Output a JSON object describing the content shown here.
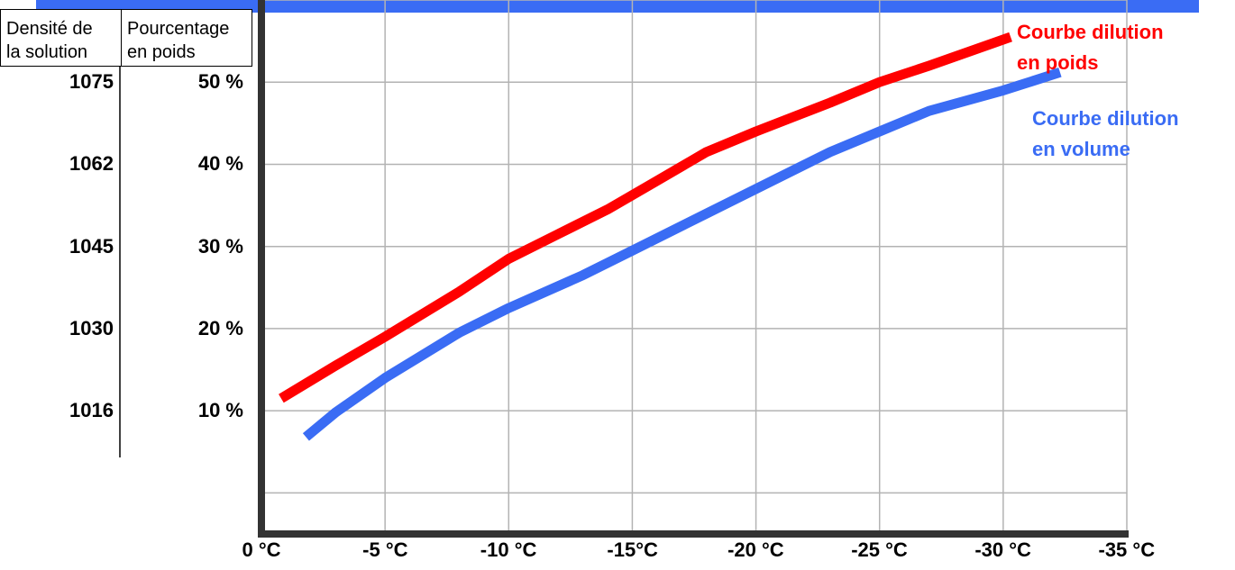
{
  "colors": {
    "weight": "#ff0000",
    "volume": "#3a6cf4",
    "frame": "#333333",
    "grid": "#b3b3b3",
    "topbar": "#3a6cf4"
  },
  "headers": {
    "density": "Densité de\nla solution",
    "percent": "Pourcentage\nen poids"
  },
  "chart_data": {
    "type": "line",
    "x_tick_labels": [
      "0 °C",
      "-5 °C",
      "-10 °C",
      "-15°C",
      "-20 °C",
      "-25 °C",
      "-30 °C",
      "-35 °C"
    ],
    "x_range": [
      0,
      -35
    ],
    "y_range": [
      -5,
      60
    ],
    "y_ticks": [
      {
        "percent": "50 %",
        "density": "1075",
        "value": 50
      },
      {
        "percent": "40 %",
        "density": "1062",
        "value": 40
      },
      {
        "percent": "30 %",
        "density": "1045",
        "value": 30
      },
      {
        "percent": "20 %",
        "density": "1030",
        "value": 20
      },
      {
        "percent": "10 %",
        "density": "1016",
        "value": 10
      }
    ],
    "grid": true,
    "series": [
      {
        "name": "Courbe dilution\nen poids",
        "color": "#ff0000",
        "x": [
          -0.8,
          -3,
          -5,
          -8,
          -10,
          -12,
          -14,
          -16,
          -18,
          -20,
          -23,
          -25,
          -27,
          -30.3
        ],
        "y": [
          11.5,
          15.5,
          19,
          24.5,
          28.5,
          31.5,
          34.5,
          38,
          41.5,
          44,
          47.5,
          50,
          52,
          55.5
        ]
      },
      {
        "name": "Courbe dilution\nen volume",
        "color": "#3a6cf4",
        "x": [
          -1.8,
          -3,
          -5,
          -8,
          -10,
          -13,
          -15,
          -18,
          -20,
          -23,
          -25,
          -27,
          -30,
          -32.3
        ],
        "y": [
          6.8,
          9.8,
          14,
          19.5,
          22.5,
          26.5,
          29.5,
          34,
          37,
          41.5,
          44,
          46.5,
          49,
          51.2
        ]
      }
    ]
  }
}
